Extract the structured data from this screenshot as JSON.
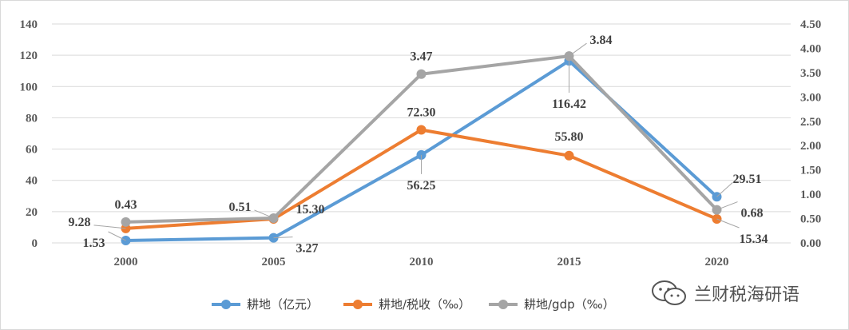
{
  "chart_data": {
    "type": "line",
    "categories": [
      "2000",
      "2005",
      "2010",
      "2015",
      "2020"
    ],
    "y_left": {
      "ticks": [
        "0",
        "20",
        "40",
        "60",
        "80",
        "100",
        "120",
        "140"
      ],
      "ylim": [
        0,
        140
      ]
    },
    "y_right": {
      "ticks": [
        "0.00",
        "0.50",
        "1.00",
        "1.50",
        "2.00",
        "2.50",
        "3.00",
        "3.50",
        "4.00",
        "4.50"
      ],
      "ylim": [
        0,
        4.5
      ]
    },
    "grid": true,
    "legend_position": "bottom",
    "series": [
      {
        "name": "耕地（亿元）",
        "axis": "left",
        "color": "#5B9BD5",
        "values": [
          1.53,
          3.27,
          56.25,
          116.42,
          29.51
        ],
        "labels": [
          "1.53",
          "3.27",
          "56.25",
          "116.42",
          "29.51"
        ]
      },
      {
        "name": "耕地/税收（‰）",
        "axis": "left",
        "color": "#ED7D31",
        "values": [
          9.28,
          15.3,
          72.3,
          55.8,
          15.34
        ],
        "labels": [
          "9.28",
          "15.30",
          "72.30",
          "55.80",
          "15.34"
        ]
      },
      {
        "name": "耕地/gdp（‰）",
        "axis": "right",
        "color": "#A5A5A5",
        "values": [
          0.43,
          0.51,
          3.47,
          3.84,
          0.68
        ],
        "labels": [
          "0.43",
          "0.51",
          "3.47",
          "3.84",
          "0.68"
        ]
      }
    ]
  },
  "watermark": {
    "text": "兰财税海研语",
    "icon": "wechat-icon"
  }
}
